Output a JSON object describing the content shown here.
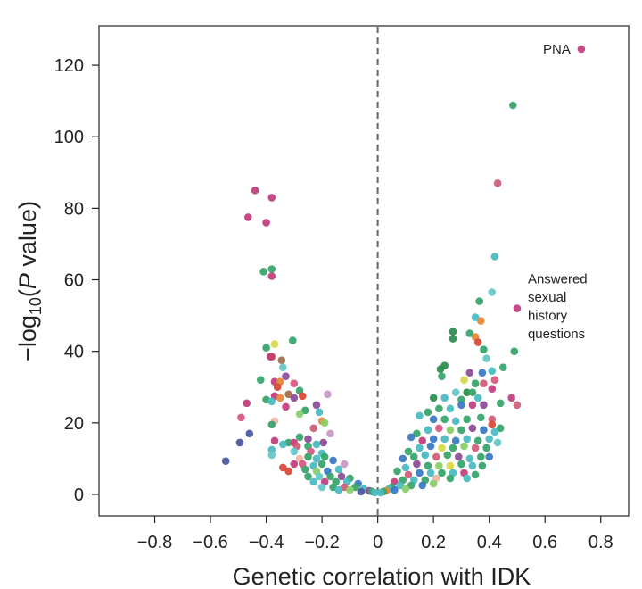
{
  "chart_data": {
    "type": "scatter",
    "title": "",
    "xlabel": "Genetic correlation with IDK",
    "ylabel": {
      "prefix": "−log",
      "subscript": "10",
      "paren_open": "(",
      "italic": "P",
      "rest": " value)"
    },
    "xlim": [
      -1.0,
      0.9
    ],
    "ylim": [
      -6,
      131
    ],
    "x_ticks": [
      -0.8,
      -0.6,
      -0.4,
      -0.2,
      0,
      0.2,
      0.4,
      0.6,
      0.8
    ],
    "x_tick_labels": [
      "−0.8",
      "−0.6",
      "−0.4",
      "−0.2",
      "0",
      "0.2",
      "0.4",
      "0.6",
      "0.8"
    ],
    "y_ticks": [
      0,
      20,
      40,
      60,
      80,
      100,
      120
    ],
    "y_tick_labels": [
      "0",
      "20",
      "40",
      "60",
      "80",
      "100",
      "120"
    ],
    "grid": false,
    "reference_line": {
      "x": 0,
      "style": "dashed"
    },
    "annotations": [
      {
        "lines": [
          "PNA"
        ],
        "x": 0.73,
        "y": 124.5
      },
      {
        "lines": [
          "Answered",
          "sexual",
          "history",
          "questions"
        ],
        "x": 0.5,
        "y": 52
      }
    ],
    "colors": {
      "magenta": "#c2407e",
      "pink": "#d95b84",
      "rose": "#d1607a",
      "purple": "#8e4f9a",
      "lavender": "#c79ac7",
      "navy": "#4b5aa0",
      "blue": "#3b7bc4",
      "teal": "#4bbcc1",
      "cyan": "#66c8c8",
      "green": "#3aa56b",
      "darkgreen": "#2f8f52",
      "lightgreen": "#8ccf6a",
      "yellow": "#d9d94a",
      "orange": "#e68a3a",
      "peach": "#f0b8a6",
      "red": "#d84a3a",
      "brown": "#a8704a"
    },
    "points": [
      {
        "x": 0.73,
        "y": 124.5,
        "c": "magenta"
      },
      {
        "x": 0.485,
        "y": 108.8,
        "c": "green"
      },
      {
        "x": 0.43,
        "y": 87,
        "c": "rose"
      },
      {
        "x": 0.42,
        "y": 66.5,
        "c": "teal"
      },
      {
        "x": 0.41,
        "y": 56.5,
        "c": "cyan"
      },
      {
        "x": 0.5,
        "y": 52,
        "c": "magenta"
      },
      {
        "x": 0.365,
        "y": 54,
        "c": "green"
      },
      {
        "x": 0.35,
        "y": 49.5,
        "c": "teal"
      },
      {
        "x": 0.37,
        "y": 48.5,
        "c": "orange"
      },
      {
        "x": 0.33,
        "y": 45,
        "c": "green"
      },
      {
        "x": 0.35,
        "y": 44,
        "c": "orange"
      },
      {
        "x": 0.27,
        "y": 45.5,
        "c": "darkgreen"
      },
      {
        "x": 0.27,
        "y": 43.5,
        "c": "darkgreen"
      },
      {
        "x": 0.36,
        "y": 42.5,
        "c": "red"
      },
      {
        "x": 0.38,
        "y": 40.5,
        "c": "green"
      },
      {
        "x": 0.49,
        "y": 40,
        "c": "green"
      },
      {
        "x": 0.39,
        "y": 38,
        "c": "cyan"
      },
      {
        "x": 0.45,
        "y": 35.5,
        "c": "green"
      },
      {
        "x": 0.41,
        "y": 34.5,
        "c": "teal"
      },
      {
        "x": 0.375,
        "y": 34,
        "c": "blue"
      },
      {
        "x": 0.33,
        "y": 34,
        "c": "purple"
      },
      {
        "x": 0.225,
        "y": 35,
        "c": "darkgreen"
      },
      {
        "x": 0.24,
        "y": 36,
        "c": "darkgreen"
      },
      {
        "x": 0.23,
        "y": 33,
        "c": "green"
      },
      {
        "x": 0.31,
        "y": 32,
        "c": "yellow"
      },
      {
        "x": 0.42,
        "y": 32,
        "c": "pink"
      },
      {
        "x": 0.35,
        "y": 31,
        "c": "green"
      },
      {
        "x": 0.38,
        "y": 31,
        "c": "rose"
      },
      {
        "x": 0.41,
        "y": 29.5,
        "c": "magenta"
      },
      {
        "x": 0.32,
        "y": 28.5,
        "c": "darkgreen"
      },
      {
        "x": 0.34,
        "y": 28.5,
        "c": "green"
      },
      {
        "x": 0.28,
        "y": 28.5,
        "c": "cyan"
      },
      {
        "x": 0.2,
        "y": 27,
        "c": "darkgreen"
      },
      {
        "x": 0.24,
        "y": 27,
        "c": "teal"
      },
      {
        "x": 0.3,
        "y": 26.5,
        "c": "green"
      },
      {
        "x": 0.36,
        "y": 27,
        "c": "teal"
      },
      {
        "x": 0.48,
        "y": 27,
        "c": "magenta"
      },
      {
        "x": 0.5,
        "y": 25,
        "c": "rose"
      },
      {
        "x": 0.44,
        "y": 25.5,
        "c": "green"
      },
      {
        "x": 0.38,
        "y": 25,
        "c": "purple"
      },
      {
        "x": 0.34,
        "y": 25,
        "c": "magenta"
      },
      {
        "x": 0.3,
        "y": 25,
        "c": "blue"
      },
      {
        "x": 0.26,
        "y": 24,
        "c": "teal"
      },
      {
        "x": 0.22,
        "y": 24,
        "c": "green"
      },
      {
        "x": 0.18,
        "y": 23,
        "c": "green"
      },
      {
        "x": 0.15,
        "y": 22,
        "c": "teal"
      },
      {
        "x": 0.2,
        "y": 21,
        "c": "blue"
      },
      {
        "x": 0.24,
        "y": 21,
        "c": "green"
      },
      {
        "x": 0.28,
        "y": 20.5,
        "c": "teal"
      },
      {
        "x": 0.32,
        "y": 21,
        "c": "green"
      },
      {
        "x": 0.37,
        "y": 21.5,
        "c": "green"
      },
      {
        "x": 0.41,
        "y": 21,
        "c": "rose"
      },
      {
        "x": 0.41,
        "y": 19.5,
        "c": "red"
      },
      {
        "x": 0.44,
        "y": 18.5,
        "c": "green"
      },
      {
        "x": 0.42,
        "y": 17.5,
        "c": "teal"
      },
      {
        "x": 0.38,
        "y": 18,
        "c": "blue"
      },
      {
        "x": 0.34,
        "y": 18.5,
        "c": "purple"
      },
      {
        "x": 0.3,
        "y": 18,
        "c": "green"
      },
      {
        "x": 0.26,
        "y": 18,
        "c": "lightgreen"
      },
      {
        "x": 0.22,
        "y": 18.5,
        "c": "pink"
      },
      {
        "x": 0.18,
        "y": 18,
        "c": "teal"
      },
      {
        "x": 0.14,
        "y": 17,
        "c": "green"
      },
      {
        "x": 0.12,
        "y": 16,
        "c": "blue"
      },
      {
        "x": 0.16,
        "y": 15,
        "c": "magenta"
      },
      {
        "x": 0.2,
        "y": 15.5,
        "c": "blue"
      },
      {
        "x": 0.24,
        "y": 15.5,
        "c": "teal"
      },
      {
        "x": 0.28,
        "y": 15,
        "c": "blue"
      },
      {
        "x": 0.32,
        "y": 15.5,
        "c": "teal"
      },
      {
        "x": 0.36,
        "y": 15,
        "c": "green"
      },
      {
        "x": 0.4,
        "y": 15.5,
        "c": "teal"
      },
      {
        "x": 0.43,
        "y": 14.5,
        "c": "cyan"
      },
      {
        "x": 0.39,
        "y": 13,
        "c": "green"
      },
      {
        "x": 0.35,
        "y": 13,
        "c": "rose"
      },
      {
        "x": 0.31,
        "y": 13.5,
        "c": "lightgreen"
      },
      {
        "x": 0.27,
        "y": 13,
        "c": "green"
      },
      {
        "x": 0.23,
        "y": 13,
        "c": "yellow"
      },
      {
        "x": 0.19,
        "y": 13.5,
        "c": "blue"
      },
      {
        "x": 0.15,
        "y": 13,
        "c": "teal"
      },
      {
        "x": 0.11,
        "y": 12,
        "c": "green"
      },
      {
        "x": 0.09,
        "y": 10,
        "c": "blue"
      },
      {
        "x": 0.13,
        "y": 10.5,
        "c": "green"
      },
      {
        "x": 0.17,
        "y": 11,
        "c": "teal"
      },
      {
        "x": 0.21,
        "y": 10.5,
        "c": "rose"
      },
      {
        "x": 0.25,
        "y": 11,
        "c": "green"
      },
      {
        "x": 0.29,
        "y": 10.5,
        "c": "purple"
      },
      {
        "x": 0.33,
        "y": 10,
        "c": "teal"
      },
      {
        "x": 0.37,
        "y": 10.5,
        "c": "green"
      },
      {
        "x": 0.4,
        "y": 10.5,
        "c": "blue"
      },
      {
        "x": 0.375,
        "y": 8,
        "c": "green"
      },
      {
        "x": 0.34,
        "y": 8,
        "c": "teal"
      },
      {
        "x": 0.3,
        "y": 8.5,
        "c": "green"
      },
      {
        "x": 0.26,
        "y": 8,
        "c": "yellow"
      },
      {
        "x": 0.22,
        "y": 8,
        "c": "lightgreen"
      },
      {
        "x": 0.18,
        "y": 8,
        "c": "green"
      },
      {
        "x": 0.14,
        "y": 8.5,
        "c": "purple"
      },
      {
        "x": 0.1,
        "y": 7.5,
        "c": "teal"
      },
      {
        "x": 0.07,
        "y": 6.5,
        "c": "green"
      },
      {
        "x": 0.11,
        "y": 5.5,
        "c": "rose"
      },
      {
        "x": 0.15,
        "y": 6,
        "c": "blue"
      },
      {
        "x": 0.19,
        "y": 6,
        "c": "teal"
      },
      {
        "x": 0.23,
        "y": 6,
        "c": "green"
      },
      {
        "x": 0.27,
        "y": 6,
        "c": "teal"
      },
      {
        "x": 0.31,
        "y": 6,
        "c": "magenta"
      },
      {
        "x": 0.35,
        "y": 5.5,
        "c": "green"
      },
      {
        "x": 0.32,
        "y": 4.5,
        "c": "teal"
      },
      {
        "x": 0.26,
        "y": 4.5,
        "c": "green"
      },
      {
        "x": 0.21,
        "y": 4.5,
        "c": "peach"
      },
      {
        "x": 0.17,
        "y": 4,
        "c": "green"
      },
      {
        "x": 0.13,
        "y": 4,
        "c": "teal"
      },
      {
        "x": 0.09,
        "y": 4,
        "c": "green"
      },
      {
        "x": 0.06,
        "y": 3.5,
        "c": "magenta"
      },
      {
        "x": 0.05,
        "y": 2,
        "c": "green"
      },
      {
        "x": 0.08,
        "y": 2.5,
        "c": "teal"
      },
      {
        "x": 0.12,
        "y": 2.5,
        "c": "green"
      },
      {
        "x": 0.16,
        "y": 2.5,
        "c": "blue"
      },
      {
        "x": 0.2,
        "y": 3,
        "c": "lightgreen"
      },
      {
        "x": 0.04,
        "y": 1.5,
        "c": "teal"
      },
      {
        "x": 0.03,
        "y": 1,
        "c": "orange"
      },
      {
        "x": 0.02,
        "y": 0.8,
        "c": "green"
      },
      {
        "x": 0.01,
        "y": 0.5,
        "c": "teal"
      },
      {
        "x": 0.06,
        "y": 1.2,
        "c": "blue"
      },
      {
        "x": 0.1,
        "y": 1.5,
        "c": "lightgreen"
      },
      {
        "x": -0.44,
        "y": 85,
        "c": "magenta"
      },
      {
        "x": -0.38,
        "y": 83,
        "c": "magenta"
      },
      {
        "x": -0.465,
        "y": 77.5,
        "c": "magenta"
      },
      {
        "x": -0.4,
        "y": 76,
        "c": "magenta"
      },
      {
        "x": -0.38,
        "y": 63,
        "c": "green"
      },
      {
        "x": -0.41,
        "y": 62.3,
        "c": "green"
      },
      {
        "x": -0.38,
        "y": 61,
        "c": "magenta"
      },
      {
        "x": -0.305,
        "y": 43,
        "c": "green"
      },
      {
        "x": -0.37,
        "y": 42,
        "c": "yellow"
      },
      {
        "x": -0.4,
        "y": 41,
        "c": "green"
      },
      {
        "x": -0.38,
        "y": 38.5,
        "c": "red"
      },
      {
        "x": -0.385,
        "y": 38.5,
        "c": "magenta"
      },
      {
        "x": -0.345,
        "y": 37.5,
        "c": "brown"
      },
      {
        "x": -0.34,
        "y": 35.5,
        "c": "cyan"
      },
      {
        "x": -0.42,
        "y": 32,
        "c": "green"
      },
      {
        "x": -0.33,
        "y": 33,
        "c": "purple"
      },
      {
        "x": -0.37,
        "y": 31.5,
        "c": "magenta"
      },
      {
        "x": -0.35,
        "y": 31.5,
        "c": "orange"
      },
      {
        "x": -0.36,
        "y": 30,
        "c": "red"
      },
      {
        "x": -0.3,
        "y": 31,
        "c": "pink"
      },
      {
        "x": -0.28,
        "y": 29,
        "c": "green"
      },
      {
        "x": -0.32,
        "y": 28,
        "c": "brown"
      },
      {
        "x": -0.37,
        "y": 27.5,
        "c": "magenta"
      },
      {
        "x": -0.35,
        "y": 27,
        "c": "orange"
      },
      {
        "x": -0.4,
        "y": 26.5,
        "c": "green"
      },
      {
        "x": -0.3,
        "y": 27,
        "c": "purple"
      },
      {
        "x": -0.18,
        "y": 28,
        "c": "lavender"
      },
      {
        "x": -0.27,
        "y": 27.5,
        "c": "red"
      },
      {
        "x": -0.38,
        "y": 26,
        "c": "teal"
      },
      {
        "x": -0.47,
        "y": 25.5,
        "c": "magenta"
      },
      {
        "x": -0.22,
        "y": 25,
        "c": "purple"
      },
      {
        "x": -0.33,
        "y": 24.5,
        "c": "magenta"
      },
      {
        "x": -0.26,
        "y": 23.5,
        "c": "green"
      },
      {
        "x": -0.21,
        "y": 23,
        "c": "teal"
      },
      {
        "x": -0.28,
        "y": 22.5,
        "c": "lightgreen"
      },
      {
        "x": -0.49,
        "y": 21.5,
        "c": "pink"
      },
      {
        "x": -0.37,
        "y": 20.5,
        "c": "peach"
      },
      {
        "x": -0.38,
        "y": 19.5,
        "c": "green"
      },
      {
        "x": -0.2,
        "y": 20.5,
        "c": "orange"
      },
      {
        "x": -0.19,
        "y": 20,
        "c": "lightgreen"
      },
      {
        "x": -0.23,
        "y": 18.5,
        "c": "rose"
      },
      {
        "x": -0.46,
        "y": 17,
        "c": "navy"
      },
      {
        "x": -0.37,
        "y": 15,
        "c": "magenta"
      },
      {
        "x": -0.28,
        "y": 16,
        "c": "green"
      },
      {
        "x": -0.25,
        "y": 15.5,
        "c": "purple"
      },
      {
        "x": -0.17,
        "y": 17,
        "c": "lavender"
      },
      {
        "x": -0.32,
        "y": 14.5,
        "c": "green"
      },
      {
        "x": -0.3,
        "y": 14.5,
        "c": "magenta"
      },
      {
        "x": -0.29,
        "y": 13.5,
        "c": "rose"
      },
      {
        "x": -0.34,
        "y": 14,
        "c": "teal"
      },
      {
        "x": -0.25,
        "y": 13.5,
        "c": "green"
      },
      {
        "x": -0.22,
        "y": 14,
        "c": "teal"
      },
      {
        "x": -0.195,
        "y": 14.5,
        "c": "purple"
      },
      {
        "x": -0.495,
        "y": 14.5,
        "c": "navy"
      },
      {
        "x": -0.38,
        "y": 12.5,
        "c": "teal"
      },
      {
        "x": -0.3,
        "y": 12,
        "c": "cyan"
      },
      {
        "x": -0.24,
        "y": 12,
        "c": "pink"
      },
      {
        "x": -0.2,
        "y": 11.5,
        "c": "teal"
      },
      {
        "x": -0.38,
        "y": 11,
        "c": "cyan"
      },
      {
        "x": -0.28,
        "y": 10,
        "c": "peach"
      },
      {
        "x": -0.25,
        "y": 10.5,
        "c": "green"
      },
      {
        "x": -0.22,
        "y": 10,
        "c": "teal"
      },
      {
        "x": -0.19,
        "y": 10.5,
        "c": "green"
      },
      {
        "x": -0.16,
        "y": 9.5,
        "c": "blue"
      },
      {
        "x": -0.545,
        "y": 9.3,
        "c": "navy"
      },
      {
        "x": -0.3,
        "y": 8.5,
        "c": "magenta"
      },
      {
        "x": -0.27,
        "y": 8.5,
        "c": "pink"
      },
      {
        "x": -0.23,
        "y": 8,
        "c": "teal"
      },
      {
        "x": -0.2,
        "y": 8.5,
        "c": "green"
      },
      {
        "x": -0.12,
        "y": 8.5,
        "c": "lavender"
      },
      {
        "x": -0.34,
        "y": 7.5,
        "c": "red"
      },
      {
        "x": -0.32,
        "y": 6.5,
        "c": "red"
      },
      {
        "x": -0.26,
        "y": 7,
        "c": "green"
      },
      {
        "x": -0.22,
        "y": 6.5,
        "c": "lightgreen"
      },
      {
        "x": -0.18,
        "y": 6.5,
        "c": "blue"
      },
      {
        "x": -0.14,
        "y": 7,
        "c": "teal"
      },
      {
        "x": -0.21,
        "y": 5,
        "c": "cyan"
      },
      {
        "x": -0.25,
        "y": 5,
        "c": "green"
      },
      {
        "x": -0.17,
        "y": 5,
        "c": "green"
      },
      {
        "x": -0.13,
        "y": 5,
        "c": "purple"
      },
      {
        "x": -0.1,
        "y": 4.5,
        "c": "green"
      },
      {
        "x": -0.23,
        "y": 3.5,
        "c": "teal"
      },
      {
        "x": -0.19,
        "y": 3.5,
        "c": "magenta"
      },
      {
        "x": -0.15,
        "y": 3.5,
        "c": "green"
      },
      {
        "x": -0.11,
        "y": 3.5,
        "c": "teal"
      },
      {
        "x": -0.07,
        "y": 3,
        "c": "blue"
      },
      {
        "x": -0.2,
        "y": 2,
        "c": "cyan"
      },
      {
        "x": -0.16,
        "y": 2,
        "c": "green"
      },
      {
        "x": -0.12,
        "y": 2,
        "c": "rose"
      },
      {
        "x": -0.08,
        "y": 2,
        "c": "green"
      },
      {
        "x": -0.05,
        "y": 1.5,
        "c": "teal"
      },
      {
        "x": -0.03,
        "y": 1,
        "c": "purple"
      },
      {
        "x": -0.02,
        "y": 0.8,
        "c": "green"
      },
      {
        "x": -0.01,
        "y": 0.5,
        "c": "teal"
      },
      {
        "x": -0.06,
        "y": 0.8,
        "c": "navy"
      },
      {
        "x": -0.1,
        "y": 1.2,
        "c": "lightgreen"
      },
      {
        "x": -0.14,
        "y": 1.2,
        "c": "teal"
      }
    ]
  }
}
